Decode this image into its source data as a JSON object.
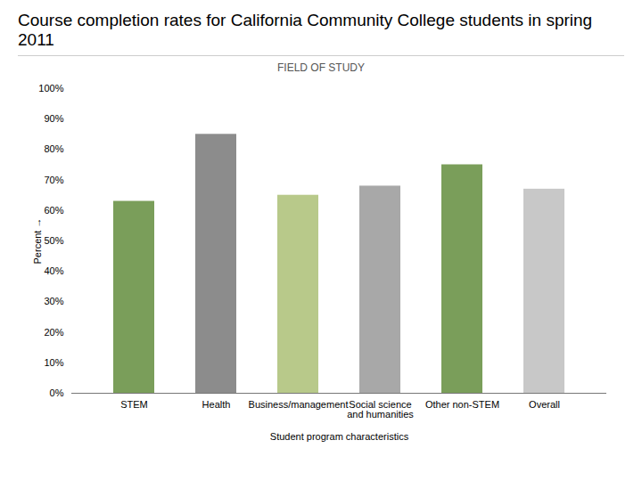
{
  "chart_data": {
    "type": "bar",
    "title": "Course completion rates for California Community College students in spring 2011",
    "subtitle": "FIELD OF STUDY",
    "xlabel": "Student program characteristics",
    "ylabel": "Percent",
    "categories": [
      "STEM",
      "Health",
      "Business/management",
      "Social science\nand humanities",
      "Other non-STEM",
      "Overall"
    ],
    "values": [
      63,
      85,
      65,
      68,
      75,
      67
    ],
    "colors": [
      "#7a9e5a",
      "#8c8c8c",
      "#b8c98a",
      "#a8a8a8",
      "#7a9e5a",
      "#c8c8c8"
    ],
    "ylim": [
      0,
      100
    ],
    "yticks": [
      {
        "value": 0,
        "label": "0%"
      },
      {
        "value": 10,
        "label": "10%"
      },
      {
        "value": 20,
        "label": "20%"
      },
      {
        "value": 30,
        "label": "30%"
      },
      {
        "value": 40,
        "label": "40%"
      },
      {
        "value": 50,
        "label": "50%"
      },
      {
        "value": 60,
        "label": "60%"
      },
      {
        "value": 70,
        "label": "70%"
      },
      {
        "value": 80,
        "label": "80%"
      },
      {
        "value": 90,
        "label": "90%"
      },
      {
        "value": 100,
        "label": "100%"
      }
    ],
    "grid": false
  }
}
